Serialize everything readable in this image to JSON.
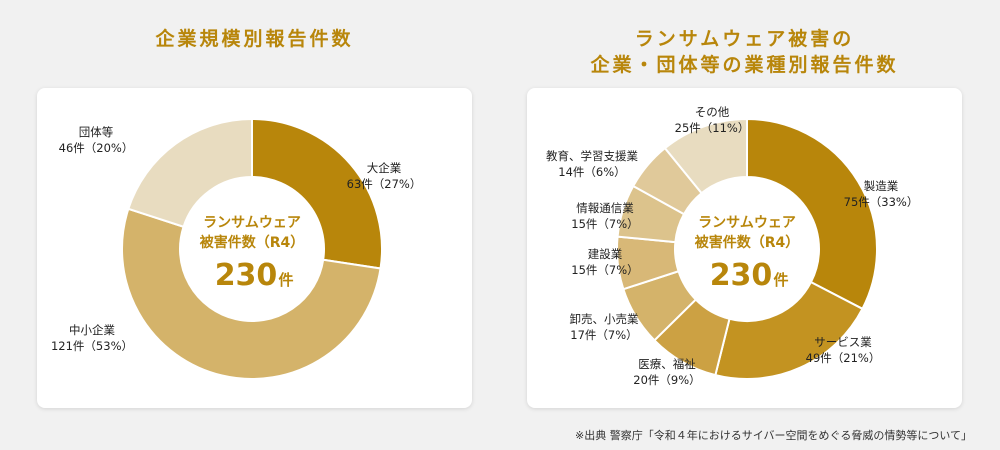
{
  "headings": {
    "left": "企業規模別報告件数",
    "right_line1": "ランサムウェア被害の",
    "right_line2": "企業・団体等の業種別報告件数"
  },
  "center": {
    "line1": "ランサムウェア",
    "line2": "被害件数（R4）",
    "total": "230",
    "unit": "件"
  },
  "colors": {
    "accent": "#b8860b",
    "left": [
      "#b8860b",
      "#d4b36a",
      "#e8dcc0"
    ],
    "right": [
      "#b8860b",
      "#c39321",
      "#cca143",
      "#d4b36a",
      "#d8b877",
      "#dcc38c",
      "#e0c99a",
      "#e8dcc0"
    ]
  },
  "chart_data": [
    {
      "type": "pie",
      "title": "企業規模別報告件数",
      "slices": [
        {
          "name": "大企業",
          "value": 63,
          "value_label": "63件（27%）"
        },
        {
          "name": "中小企業",
          "value": 121,
          "value_label": "121件（53%）"
        },
        {
          "name": "団体等",
          "value": 46,
          "value_label": "46件（20%）"
        }
      ]
    },
    {
      "type": "pie",
      "title": "ランサムウェア被害の企業・団体等の業種別報告件数",
      "slices": [
        {
          "name": "製造業",
          "value": 75,
          "value_label": "75件（33%）"
        },
        {
          "name": "サービス業",
          "value": 49,
          "value_label": "49件（21%）"
        },
        {
          "name": "医療、福祉",
          "value": 20,
          "value_label": "20件（9%）"
        },
        {
          "name": "卸売、小売業",
          "value": 17,
          "value_label": "17件（7%）"
        },
        {
          "name": "建設業",
          "value": 15,
          "value_label": "15件（7%）"
        },
        {
          "name": "情報通信業",
          "value": 15,
          "value_label": "15件（7%）"
        },
        {
          "name": "教育、学習支援業",
          "value": 14,
          "value_label": "14件（6%）"
        },
        {
          "name": "その他",
          "value": 25,
          "value_label": "25件（11%）"
        }
      ]
    }
  ],
  "source_note": "※出典 警察庁「令和４年におけるサイバー空間をめぐる脅威の情勢等について」"
}
